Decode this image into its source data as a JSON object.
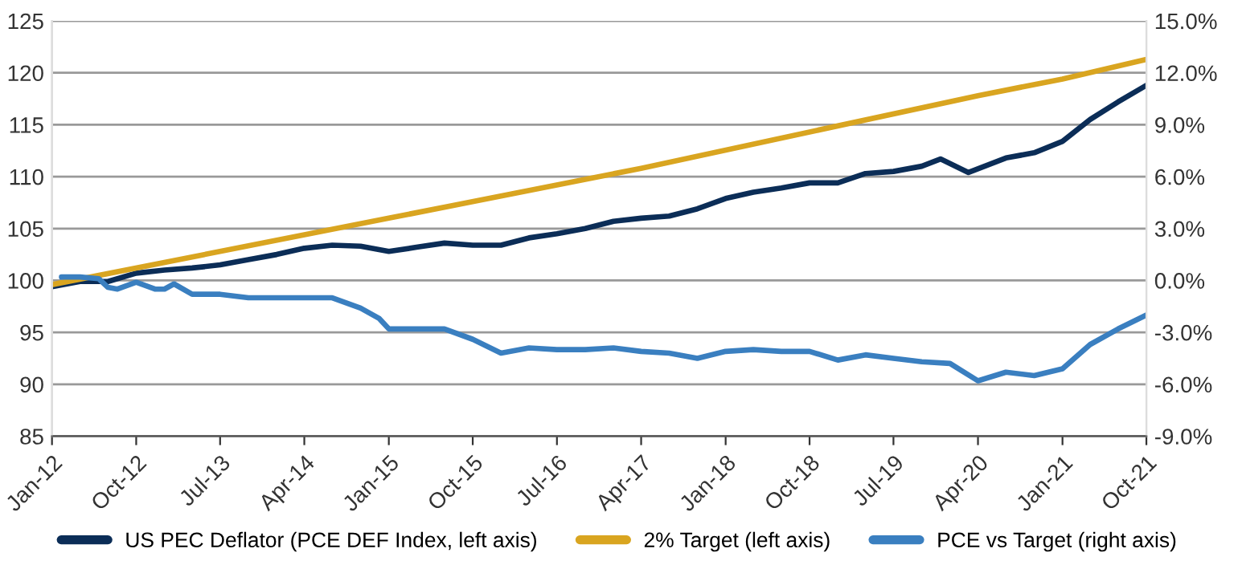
{
  "chart_data": {
    "type": "line",
    "grid": "y",
    "legend": "bottom",
    "marker": "none",
    "line_style": "solid",
    "xlim": [
      "2012-01",
      "2021-10"
    ],
    "xticks": [
      {
        "value": "2012-01",
        "label": "Jan-12"
      },
      {
        "value": "2012-10",
        "label": "Oct-12"
      },
      {
        "value": "2013-07",
        "label": "Jul-13"
      },
      {
        "value": "2014-04",
        "label": "Apr-14"
      },
      {
        "value": "2015-01",
        "label": "Jan-15"
      },
      {
        "value": "2015-10",
        "label": "Oct-15"
      },
      {
        "value": "2016-07",
        "label": "Jul-16"
      },
      {
        "value": "2017-04",
        "label": "Apr-17"
      },
      {
        "value": "2018-01",
        "label": "Jan-18"
      },
      {
        "value": "2018-10",
        "label": "Oct-18"
      },
      {
        "value": "2019-07",
        "label": "Jul-19"
      },
      {
        "value": "2020-04",
        "label": "Apr-20"
      },
      {
        "value": "2021-01",
        "label": "Jan-21"
      },
      {
        "value": "2021-10",
        "label": "Oct-21"
      }
    ],
    "ylim": [
      85,
      125
    ],
    "yticks": [
      85,
      90,
      95,
      100,
      105,
      110,
      115,
      120,
      125
    ],
    "y2lim": [
      -9,
      15
    ],
    "y2ticks": [
      {
        "value": -9,
        "label": "-9.0%"
      },
      {
        "value": -6,
        "label": "-6.0%"
      },
      {
        "value": -3,
        "label": "-3.0%"
      },
      {
        "value": 0,
        "label": "0.0%"
      },
      {
        "value": 3,
        "label": "3.0%"
      },
      {
        "value": 6,
        "label": "6.0%"
      },
      {
        "value": 9,
        "label": "9.0%"
      },
      {
        "value": 12,
        "label": "12.0%"
      },
      {
        "value": 15,
        "label": "15.0%"
      }
    ],
    "series": [
      {
        "name": "US PEC Deflator (PCE DEF Index, left axis)",
        "color": "#0b2d57",
        "x": [
          "2012-01",
          "2012-04",
          "2012-07",
          "2012-10",
          "2013-01",
          "2013-04",
          "2013-07",
          "2013-10",
          "2014-01",
          "2014-04",
          "2014-07",
          "2014-10",
          "2015-01",
          "2015-04",
          "2015-07",
          "2015-10",
          "2016-01",
          "2016-04",
          "2016-07",
          "2016-10",
          "2017-01",
          "2017-04",
          "2017-07",
          "2017-10",
          "2018-01",
          "2018-04",
          "2018-07",
          "2018-10",
          "2019-01",
          "2019-04",
          "2019-07",
          "2019-10",
          "2019-12",
          "2020-03",
          "2020-07",
          "2020-10",
          "2021-01",
          "2021-04",
          "2021-07",
          "2021-10"
        ],
        "values": [
          99.4,
          99.9,
          99.9,
          100.7,
          101.0,
          101.2,
          101.5,
          102.0,
          102.5,
          103.1,
          103.4,
          103.3,
          102.8,
          103.2,
          103.6,
          103.4,
          103.4,
          104.1,
          104.5,
          105.0,
          105.7,
          106.0,
          106.2,
          106.9,
          107.9,
          108.5,
          108.9,
          109.4,
          109.4,
          110.3,
          110.5,
          111.0,
          111.7,
          110.4,
          111.8,
          112.3,
          113.4,
          115.5,
          117.2,
          118.8
        ]
      },
      {
        "name": "2% Target (left axis)",
        "color": "#d9a520",
        "x": [
          "2012-01",
          "2015-01",
          "2017-04",
          "2020-04",
          "2021-01",
          "2021-10"
        ],
        "values": [
          99.6,
          106.0,
          110.8,
          117.8,
          119.4,
          121.3
        ]
      },
      {
        "name": "PCE vs Target (right axis)",
        "color": "#3a7fc0",
        "axis": "y2",
        "x": [
          "2012-02",
          "2012-04",
          "2012-06",
          "2012-07",
          "2012-08",
          "2012-10",
          "2012-12",
          "2013-01",
          "2013-02",
          "2013-04",
          "2013-07",
          "2013-10",
          "2014-01",
          "2014-04",
          "2014-07",
          "2014-10",
          "2014-12",
          "2015-01",
          "2015-04",
          "2015-07",
          "2015-10",
          "2016-01",
          "2016-04",
          "2016-07",
          "2016-10",
          "2017-01",
          "2017-04",
          "2017-07",
          "2017-10",
          "2018-01",
          "2018-04",
          "2018-07",
          "2018-10",
          "2019-01",
          "2019-04",
          "2019-07",
          "2019-10",
          "2020-01",
          "2020-04",
          "2020-07",
          "2020-10",
          "2021-01",
          "2021-04",
          "2021-07",
          "2021-10"
        ],
        "values": [
          0.2,
          0.2,
          0.1,
          -0.4,
          -0.5,
          -0.1,
          -0.5,
          -0.5,
          -0.2,
          -0.8,
          -0.8,
          -1.0,
          -1.0,
          -1.0,
          -1.0,
          -1.6,
          -2.2,
          -2.8,
          -2.8,
          -2.8,
          -3.4,
          -4.2,
          -3.9,
          -4.0,
          -4.0,
          -3.9,
          -4.1,
          -4.2,
          -4.5,
          -4.1,
          -4.0,
          -4.1,
          -4.1,
          -4.6,
          -4.3,
          -4.5,
          -4.7,
          -4.8,
          -5.8,
          -5.3,
          -5.5,
          -5.1,
          -3.7,
          -2.8,
          -2.0
        ]
      }
    ]
  }
}
